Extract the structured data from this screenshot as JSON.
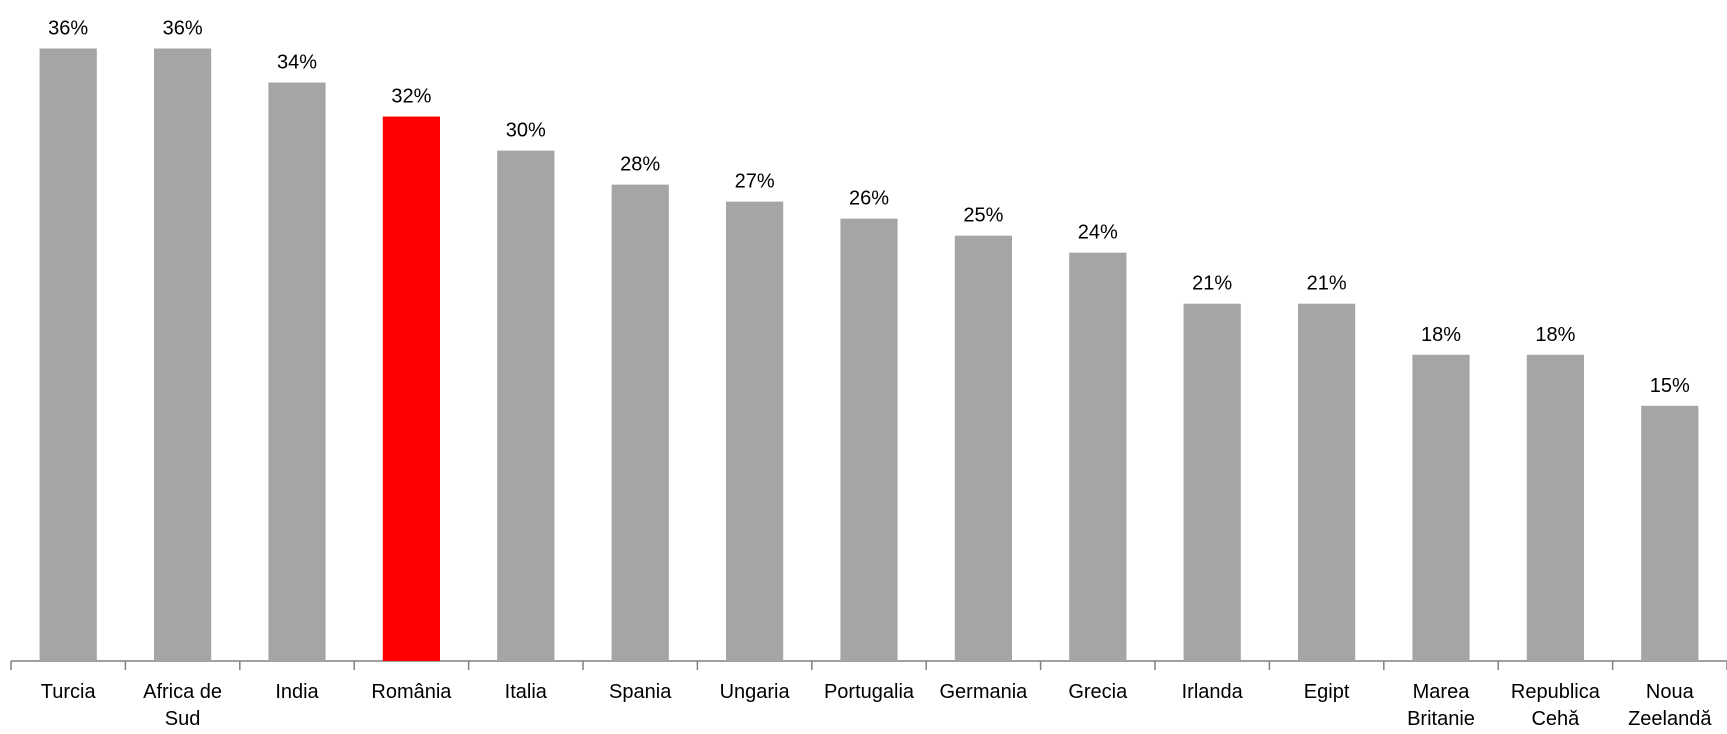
{
  "chart_data": {
    "type": "bar",
    "categories": [
      "Turcia",
      "Africa de Sud",
      "India",
      "România",
      "Italia",
      "Spania",
      "Ungaria",
      "Portugalia",
      "Germania",
      "Grecia",
      "Irlanda",
      "Egipt",
      "Marea Britanie",
      "Republica Cehă",
      "Noua Zeelandă"
    ],
    "values": [
      36,
      36,
      34,
      32,
      30,
      28,
      27,
      26,
      25,
      24,
      21,
      21,
      18,
      18,
      15
    ],
    "value_labels": [
      "36%",
      "36%",
      "34%",
      "32%",
      "30%",
      "28%",
      "27%",
      "26%",
      "25%",
      "24%",
      "21%",
      "21%",
      "18%",
      "18%",
      "15%"
    ],
    "colors": [
      "#a5a5a5",
      "#a5a5a5",
      "#a5a5a5",
      "#ff0000",
      "#a5a5a5",
      "#a5a5a5",
      "#a5a5a5",
      "#a5a5a5",
      "#a5a5a5",
      "#a5a5a5",
      "#a5a5a5",
      "#a5a5a5",
      "#a5a5a5",
      "#a5a5a5",
      "#a5a5a5"
    ]
  }
}
